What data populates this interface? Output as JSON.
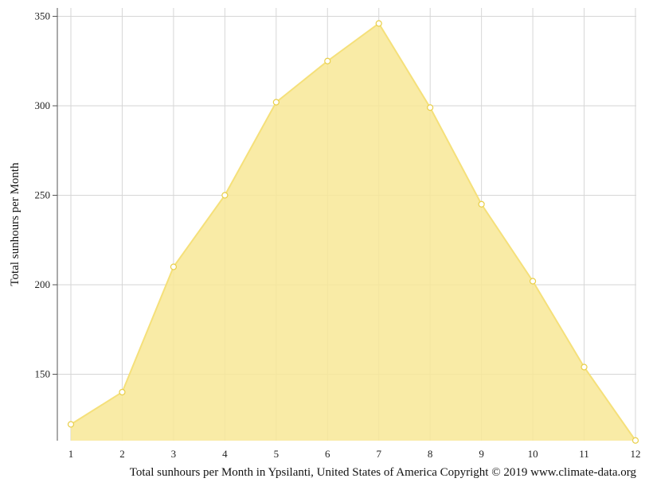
{
  "chart_data": {
    "type": "area",
    "title": "",
    "xlabel": "",
    "ylabel": "Total sunhours per Month",
    "caption": "Total sunhours per Month in Ypsilanti, United States of America Copyright © 2019 www.climate-data.org",
    "x": [
      1,
      2,
      3,
      4,
      5,
      6,
      7,
      8,
      9,
      10,
      11,
      12
    ],
    "series": [
      {
        "values": [
          122,
          140,
          210,
          250,
          302,
          325,
          346,
          299,
          245,
          202,
          154,
          113
        ]
      }
    ],
    "xlim": [
      1,
      12
    ],
    "ylim": [
      113,
      355
    ],
    "yticks": [
      150,
      200,
      250,
      300,
      350
    ],
    "grid": true,
    "legend": "none",
    "colors": {
      "fill": "#f8e796",
      "line": "#f5e07a",
      "marker_fill": "#ffffff",
      "marker_stroke": "#e9cf4a",
      "grid": "#d6d6d6",
      "axis": "#555555"
    }
  }
}
